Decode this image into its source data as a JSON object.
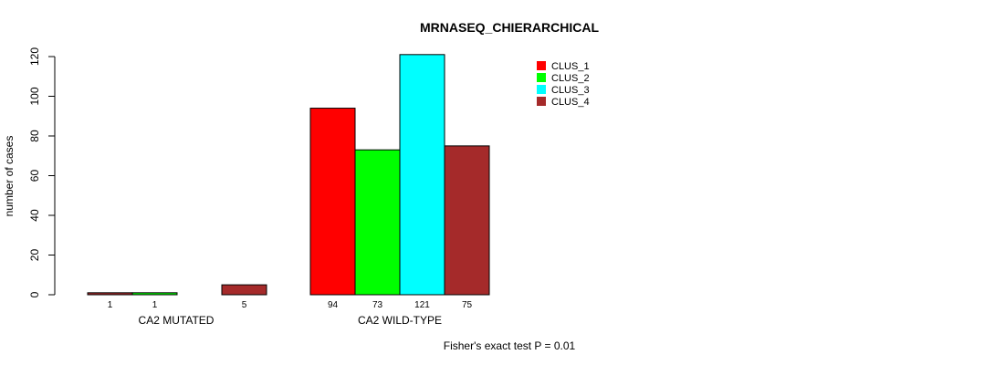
{
  "chart_data": {
    "type": "bar",
    "title": "MRNASEQ_CHIERARCHICAL",
    "ylabel": "number of cases",
    "xlabel": "",
    "ylim": [
      0,
      120
    ],
    "yticks": [
      0,
      20,
      40,
      60,
      80,
      100,
      120
    ],
    "categories": [
      "CA2 MUTATED",
      "CA2 WILD-TYPE"
    ],
    "series": [
      {
        "name": "CLUS_1",
        "color": "#FF0000",
        "values": [
          1,
          94
        ],
        "labels": [
          "1",
          "94"
        ]
      },
      {
        "name": "CLUS_2",
        "color": "#00FF00",
        "values": [
          1,
          73
        ],
        "labels": [
          "1",
          "73"
        ]
      },
      {
        "name": "CLUS_3",
        "color": "#00FFFF",
        "values": [
          0,
          121
        ],
        "labels": [
          "",
          "121"
        ]
      },
      {
        "name": "CLUS_4",
        "color": "#A52A2A",
        "values": [
          5,
          75
        ],
        "labels": [
          "5",
          "75"
        ]
      }
    ],
    "mutated_bar_colors": [
      "#A52A2A",
      "#00FF00",
      "#00FFFF",
      "#A52A2A"
    ],
    "footnote": "Fisher's exact test P = 0.01"
  }
}
